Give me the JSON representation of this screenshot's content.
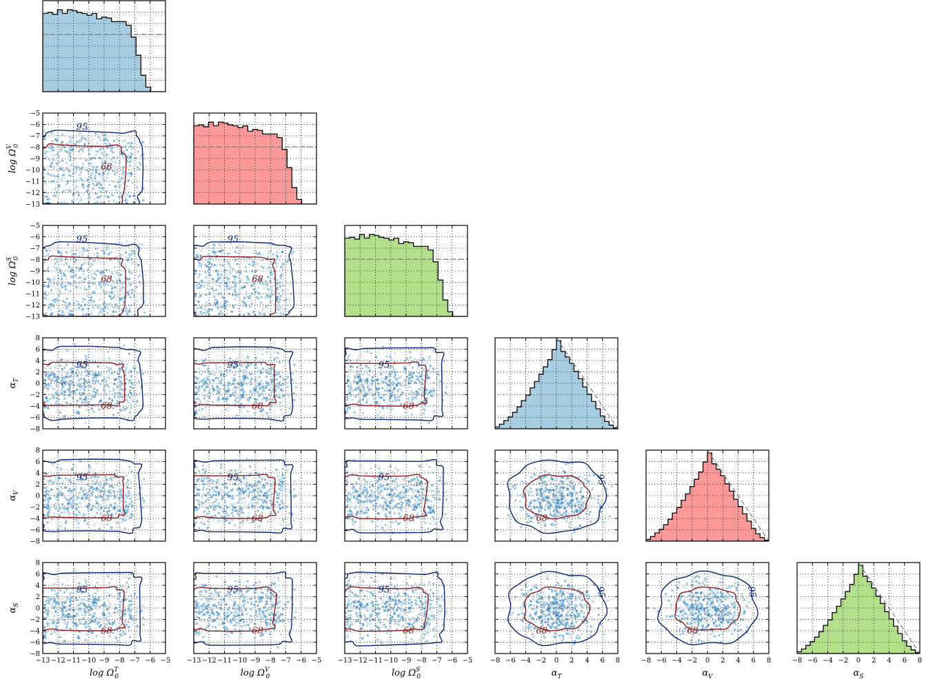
{
  "chart_data": {
    "type": "corner",
    "colors": {
      "teal_hist": "#a6cde1",
      "red_hist": "#fb9a99",
      "green_hist": "#b2df8a",
      "scatter": "#3182bd",
      "contour68": "#8b1a1a",
      "contour95": "#08207a"
    },
    "params": [
      {
        "name": "log Ω0^T",
        "axis_label": "log Ω",
        "sub": "0",
        "sup": "T",
        "range": [
          -13,
          -5
        ],
        "hist_color": "teal_hist"
      },
      {
        "name": "log Ω0^V",
        "axis_label": "log Ω",
        "sub": "0",
        "sup": "V",
        "range": [
          -13,
          -5
        ],
        "hist_color": "red_hist"
      },
      {
        "name": "log Ω0^S",
        "axis_label": "log Ω",
        "sub": "0",
        "sup": "S",
        "range": [
          -13,
          -5
        ],
        "hist_color": "green_hist"
      },
      {
        "name": "α_T",
        "axis_label": "α",
        "sub": "T",
        "sup": "",
        "range": [
          -8,
          8
        ],
        "hist_color": "teal_hist"
      },
      {
        "name": "α_V",
        "axis_label": "α",
        "sub": "V",
        "sup": "",
        "range": [
          -8,
          8
        ],
        "hist_color": "red_hist"
      },
      {
        "name": "α_S",
        "axis_label": "α",
        "sub": "S",
        "sup": "",
        "range": [
          -8,
          8
        ],
        "hist_color": "green_hist"
      }
    ],
    "ticks_log": [
      "−13",
      "−12",
      "−11",
      "−10",
      "−9",
      "−8",
      "−7",
      "−6",
      "−5"
    ],
    "ticks_alpha": [
      "−8",
      "−6",
      "−4",
      "−2",
      "0",
      "2",
      "4",
      "6",
      "8"
    ],
    "contour_labels": [
      "68",
      "95"
    ],
    "histograms": {
      "log": [
        0.86,
        0.87,
        0.85,
        0.9,
        0.86,
        0.9,
        0.89,
        0.87,
        0.86,
        0.84,
        0.86,
        0.8,
        0.82,
        0.81,
        0.77,
        0.77,
        0.77,
        0.73,
        0.6,
        0.4,
        0.18,
        0.05,
        0.0,
        0.0,
        0.0
      ],
      "alpha": [
        0.02,
        0.05,
        0.09,
        0.13,
        0.18,
        0.24,
        0.31,
        0.37,
        0.45,
        0.52,
        0.6,
        0.68,
        0.76,
        0.87,
        0.97,
        0.85,
        0.79,
        0.72,
        0.63,
        0.55,
        0.46,
        0.38,
        0.3,
        0.22,
        0.14,
        0.08,
        0.04,
        0.01
      ],
      "log_prior": 0.63,
      "alpha_prior_line": [
        [
          0,
          1.0
        ],
        [
          8,
          0.0
        ]
      ]
    }
  }
}
